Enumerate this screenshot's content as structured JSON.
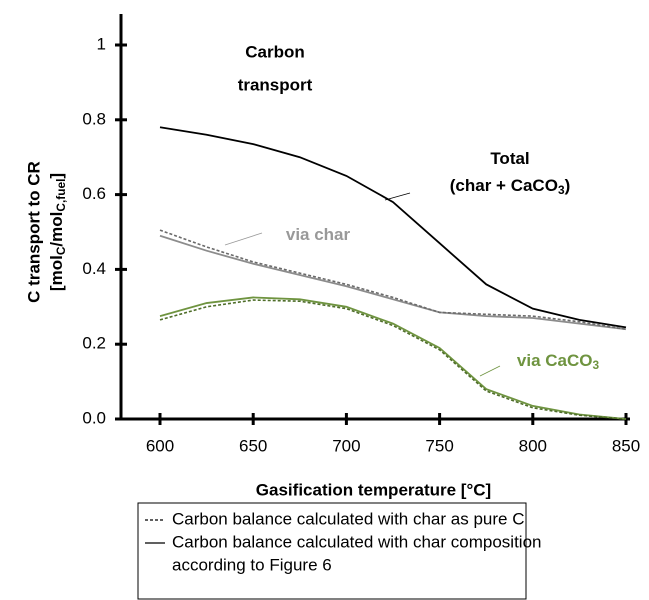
{
  "chart_data": {
    "type": "line",
    "title": [
      "Carbon",
      "transport"
    ],
    "x_label": "Gasification temperature [°C]",
    "y_label": "C transport to CR",
    "y_label_units": [
      "[mol",
      "C",
      "/mol",
      "C,fuel",
      "]"
    ],
    "x": [
      600,
      625,
      650,
      675,
      700,
      725,
      750,
      775,
      800,
      825,
      850
    ],
    "series": [
      {
        "color": "#000000",
        "dash": false,
        "values": [
          0.78,
          0.76,
          0.735,
          0.7,
          0.65,
          0.58,
          0.47,
          0.36,
          0.295,
          0.265,
          0.245
        ]
      },
      {
        "color": "#8c8c8c",
        "dash": false,
        "values": [
          0.49,
          0.45,
          0.415,
          0.385,
          0.355,
          0.32,
          0.285,
          0.275,
          0.27,
          0.255,
          0.24
        ]
      },
      {
        "color": "#6a6a6a",
        "dash": true,
        "values": [
          0.505,
          0.46,
          0.42,
          0.39,
          0.36,
          0.325,
          0.285,
          0.28,
          0.275,
          0.26,
          0.24
        ]
      },
      {
        "color": "#6f9440",
        "dash": false,
        "values": [
          0.275,
          0.31,
          0.325,
          0.32,
          0.3,
          0.255,
          0.19,
          0.08,
          0.035,
          0.012,
          0.0
        ]
      },
      {
        "color": "#4f6e2a",
        "dash": true,
        "values": [
          0.265,
          0.3,
          0.318,
          0.315,
          0.295,
          0.25,
          0.185,
          0.075,
          0.03,
          0.01,
          0.0
        ]
      }
    ],
    "annotations": [
      {
        "color": "#000000",
        "lines": [
          [
            "Total"
          ],
          [
            "(char + CaCO",
            "3",
            ")"
          ]
        ]
      },
      {
        "color": "#999999",
        "lines": [
          [
            "via char"
          ]
        ]
      },
      {
        "color": "#6f9440",
        "lines": [
          [
            "via CaCO",
            "3"
          ]
        ]
      }
    ],
    "legend": [
      {
        "dash": true,
        "lines": [
          "Carbon balance calculated with char as pure C"
        ]
      },
      {
        "dash": false,
        "lines": [
          "Carbon balance calculated with char composition",
          "according to Figure 6"
        ]
      }
    ],
    "xlim": [
      600,
      850
    ],
    "xticks": [
      600,
      650,
      700,
      750,
      800,
      850
    ],
    "ylim": [
      0,
      1
    ],
    "yticks": [
      {
        "value": 0,
        "label": "0.0"
      },
      0.2,
      0.4,
      0.6,
      0.8,
      1
    ]
  }
}
